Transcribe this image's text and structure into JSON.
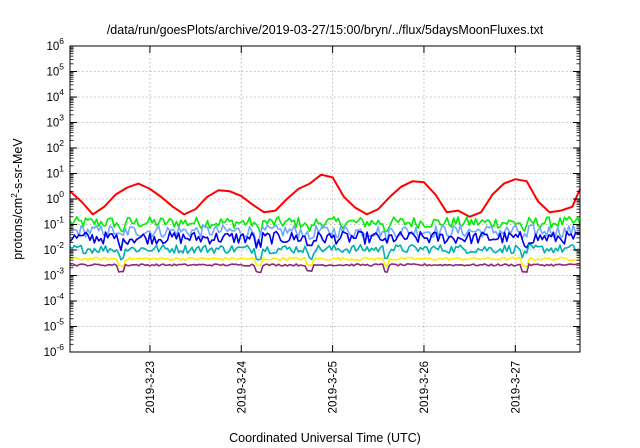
{
  "chart_data": {
    "type": "line",
    "title": "/data/run/goesPlots/archive/2019-03-27/15:00/bryn/../flux/5daysMoonFluxes.txt",
    "xlabel": "Coordinated Universal Time (UTC)",
    "ylabel": {
      "base": "protons/cm",
      "sup": "2",
      "rest": "-s-sr-MeV"
    },
    "y_scale": "log",
    "ylim": [
      1e-06,
      1000000.0
    ],
    "y_ticks": [
      {
        "base": "10",
        "exp": "-6"
      },
      {
        "base": "10",
        "exp": "-5"
      },
      {
        "base": "10",
        "exp": "-4"
      },
      {
        "base": "10",
        "exp": "-3"
      },
      {
        "base": "10",
        "exp": "-2"
      },
      {
        "base": "10",
        "exp": "-1"
      },
      {
        "base": "10",
        "exp": "0"
      },
      {
        "base": "10",
        "exp": "1"
      },
      {
        "base": "10",
        "exp": "2"
      },
      {
        "base": "10",
        "exp": "3"
      },
      {
        "base": "10",
        "exp": "4"
      },
      {
        "base": "10",
        "exp": "5"
      },
      {
        "base": "10",
        "exp": "6"
      }
    ],
    "xlim": [
      "2019-03-22T03:00",
      "2019-03-27T17:00"
    ],
    "x_ticks": [
      {
        "t": "2019-03-23T00:00",
        "label": "2019-3-23"
      },
      {
        "t": "2019-03-24T00:00",
        "label": "2019-3-24"
      },
      {
        "t": "2019-03-25T00:00",
        "label": "2019-3-25"
      },
      {
        "t": "2019-03-26T00:00",
        "label": "2019-3-26"
      },
      {
        "t": "2019-03-27T00:00",
        "label": "2019-3-27"
      }
    ],
    "grid": true,
    "series": [
      {
        "color": "#ff0000",
        "x": [
          "2019-03-22T03:00",
          "2019-03-22T06:00",
          "2019-03-22T09:00",
          "2019-03-22T12:00",
          "2019-03-22T15:00",
          "2019-03-22T18:00",
          "2019-03-22T21:00",
          "2019-03-23T00:00",
          "2019-03-23T03:00",
          "2019-03-23T06:00",
          "2019-03-23T09:00",
          "2019-03-23T12:00",
          "2019-03-23T15:00",
          "2019-03-23T18:00",
          "2019-03-23T21:00",
          "2019-03-24T00:00",
          "2019-03-24T03:00",
          "2019-03-24T06:00",
          "2019-03-24T09:00",
          "2019-03-24T12:00",
          "2019-03-24T15:00",
          "2019-03-24T18:00",
          "2019-03-24T21:00",
          "2019-03-25T00:00",
          "2019-03-25T03:00",
          "2019-03-25T06:00",
          "2019-03-25T09:00",
          "2019-03-25T12:00",
          "2019-03-25T15:00",
          "2019-03-25T18:00",
          "2019-03-25T21:00",
          "2019-03-26T00:00",
          "2019-03-26T03:00",
          "2019-03-26T06:00",
          "2019-03-26T09:00",
          "2019-03-26T12:00",
          "2019-03-26T15:00",
          "2019-03-26T18:00",
          "2019-03-26T21:00",
          "2019-03-27T00:00",
          "2019-03-27T03:00",
          "2019-03-27T06:00",
          "2019-03-27T09:00",
          "2019-03-27T12:00",
          "2019-03-27T15:00",
          "2019-03-27T17:00"
        ],
        "values": [
          2,
          0.8,
          0.25,
          0.5,
          1.5,
          2.8,
          4,
          2.5,
          1.2,
          0.5,
          0.25,
          0.4,
          1.2,
          2.2,
          2,
          1.3,
          0.6,
          0.3,
          0.35,
          1,
          2.5,
          4,
          9,
          7,
          1.2,
          0.45,
          0.25,
          0.4,
          1.2,
          3,
          5,
          4.5,
          1.5,
          0.3,
          0.35,
          0.2,
          0.3,
          1.5,
          4,
          6,
          5,
          0.8,
          0.3,
          0.35,
          0.5,
          2.5
        ]
      },
      {
        "color": "#00ee00",
        "base": 0.12,
        "jitter": 0.45
      },
      {
        "color": "#6fa8ff",
        "base": 0.055,
        "jitter": 0.5
      },
      {
        "color": "#0000ee",
        "base": 0.03,
        "jitter": 0.5
      },
      {
        "color": "#00b0b0",
        "base": 0.011,
        "jitter": 0.35
      },
      {
        "color": "#ffee00",
        "base": 0.0045,
        "jitter": 0.12
      },
      {
        "color": "#8b2a78",
        "base": 0.0026,
        "jitter": 0.08
      }
    ]
  }
}
